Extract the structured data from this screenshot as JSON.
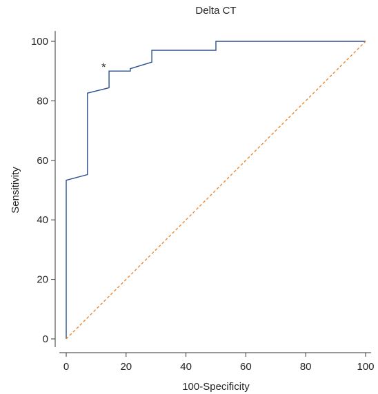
{
  "chart_data": {
    "type": "line",
    "title": "Delta CT",
    "xlabel": "100-Specificity",
    "ylabel": "Sensitivity",
    "xlim": [
      0,
      100
    ],
    "ylim": [
      0,
      100
    ],
    "x_ticks": [
      0,
      20,
      40,
      60,
      80,
      100
    ],
    "y_ticks": [
      0,
      20,
      40,
      60,
      80,
      100
    ],
    "grid": false,
    "series": [
      {
        "kind": "roc-step",
        "color": "#2a4f8f",
        "points": [
          [
            0,
            0
          ],
          [
            0,
            53.3
          ],
          [
            7.1,
            55.2
          ],
          [
            7.1,
            82.6
          ],
          [
            14.3,
            84.4
          ],
          [
            14.3,
            90.0
          ],
          [
            21.4,
            90.0
          ],
          [
            21.4,
            90.8
          ],
          [
            28.6,
            93.0
          ],
          [
            28.6,
            97.0
          ],
          [
            50.0,
            97.0
          ],
          [
            50.0,
            100
          ],
          [
            100,
            100
          ]
        ]
      },
      {
        "kind": "reference-diagonal",
        "color": "#e8822a",
        "points": [
          [
            0,
            0
          ],
          [
            100,
            100
          ]
        ]
      }
    ],
    "annotations": [
      {
        "text": "*",
        "x": 12.5,
        "y": 90.5
      }
    ]
  }
}
